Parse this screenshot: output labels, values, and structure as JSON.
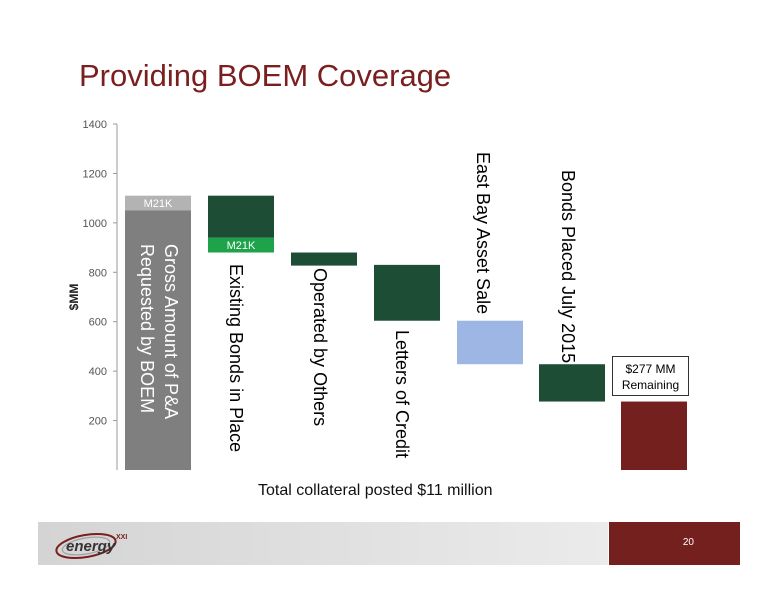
{
  "slide": {
    "title": "Providing BOEM Coverage",
    "footnote": "Total collateral posted $11 million",
    "page_number": "20",
    "logo": {
      "text": "energy",
      "superscript": "XXI"
    }
  },
  "colors": {
    "title": "#7a1f1f",
    "gray": "#7f7f7f",
    "gray_light": "#b3b3b3",
    "dark_green": "#1e4d35",
    "bright_green": "#1fa34a",
    "light_blue": "#9db6e4",
    "maroon": "#73201f"
  },
  "chart_data": {
    "type": "waterfall",
    "ylabel": "$MM",
    "ylim": [
      0,
      1400
    ],
    "yticks": [
      200,
      400,
      600,
      800,
      1000,
      1200,
      1400
    ],
    "bars": [
      {
        "label": "Gross Amount of P&A Requested by BOEM",
        "label_lines": [
          "Gross Amount of P&A",
          "Requested by BOEM"
        ],
        "segments": [
          {
            "low": 0,
            "high": 1050,
            "color": "gray"
          },
          {
            "low": 1050,
            "high": 1110,
            "color": "gray_light",
            "text": "M21K"
          }
        ]
      },
      {
        "label": "Existing Bonds in Place",
        "label_lines": [
          "Existing Bonds in Place"
        ],
        "segments": [
          {
            "low": 880,
            "high": 940,
            "color": "bright_green",
            "text": "M21K"
          },
          {
            "low": 940,
            "high": 1110,
            "color": "dark_green"
          }
        ]
      },
      {
        "label": "Operated by Others",
        "label_lines": [
          "Operated by Others"
        ],
        "segments": [
          {
            "low": 827,
            "high": 880,
            "color": "dark_green"
          }
        ]
      },
      {
        "label": "Letters of Credit",
        "label_lines": [
          "Letters of Credit"
        ],
        "segments": [
          {
            "low": 604,
            "high": 830,
            "color": "dark_green"
          }
        ]
      },
      {
        "label": "East Bay Asset Sale",
        "label_lines": [
          "East Bay Asset Sale"
        ],
        "segments": [
          {
            "low": 428,
            "high": 604,
            "color": "light_blue"
          }
        ]
      },
      {
        "label": "Bonds Placed July 2015",
        "label_lines": [
          "Bonds Placed July 2015"
        ],
        "segments": [
          {
            "low": 277,
            "high": 428,
            "color": "dark_green"
          }
        ]
      },
      {
        "label": "$277 MM Remaining",
        "label_lines": [],
        "segments": [
          {
            "low": 0,
            "high": 277,
            "color": "maroon"
          }
        ]
      }
    ],
    "callout": {
      "line1": "$277 MM",
      "line2": "Remaining"
    }
  }
}
